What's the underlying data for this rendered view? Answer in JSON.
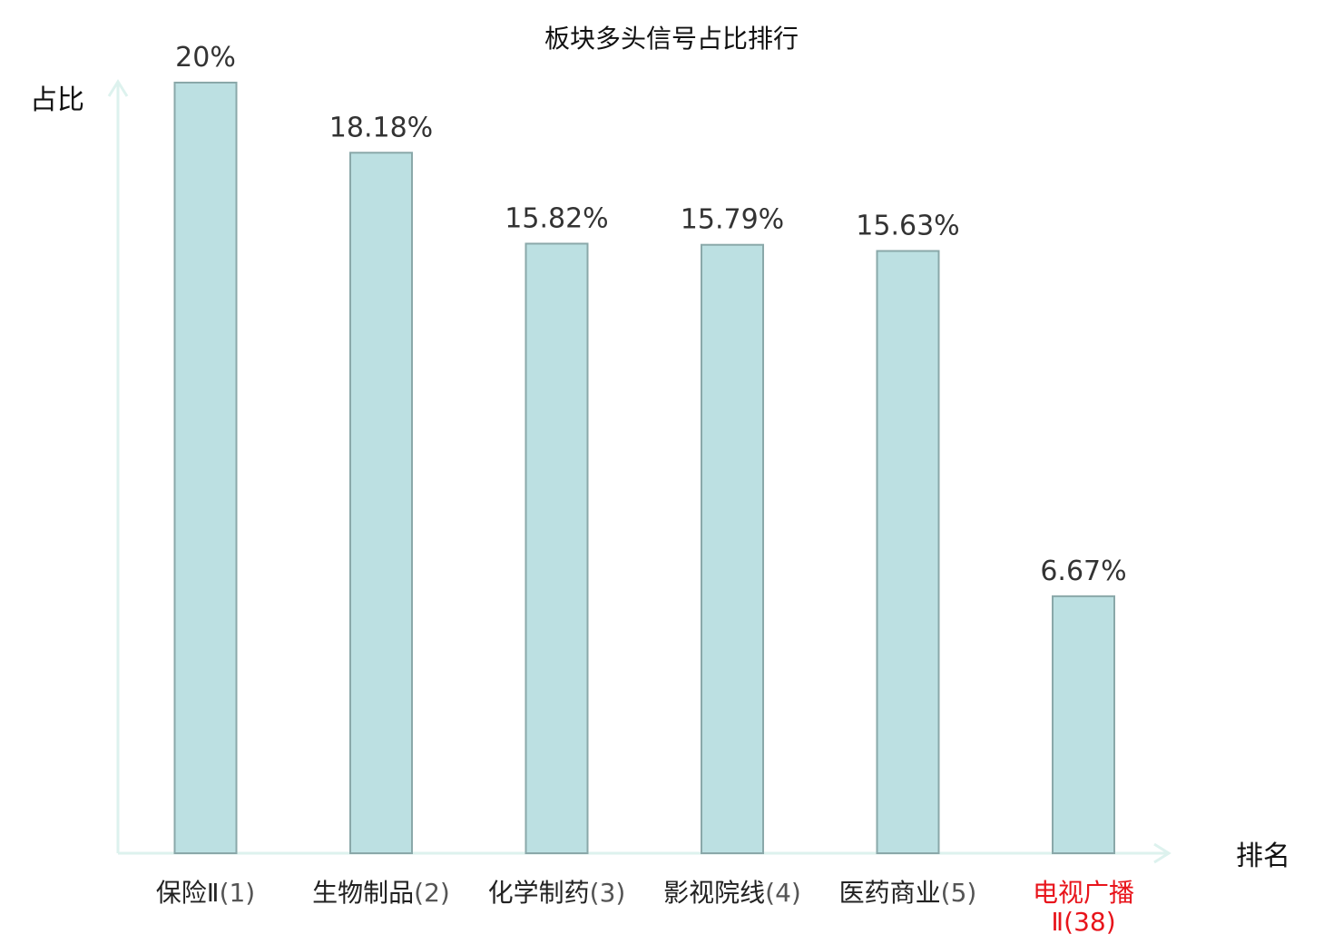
{
  "chart_data": {
    "type": "bar",
    "title": "板块多头信号占比排行",
    "xlabel": "排名",
    "ylabel": "占比",
    "ylim": [
      0,
      20
    ],
    "grid": false,
    "categories": [
      {
        "name": "保险Ⅱ",
        "rank": "(1)"
      },
      {
        "name": "生物制品",
        "rank": "(2)"
      },
      {
        "name": "化学制药",
        "rank": "(3)"
      },
      {
        "name": "影视院线",
        "rank": "(4)"
      },
      {
        "name": "医药商业",
        "rank": "(5)"
      },
      {
        "name": "电视广播",
        "rank": "Ⅱ(38)",
        "highlight": true
      }
    ],
    "values": [
      20,
      18.18,
      15.82,
      15.79,
      15.63,
      6.67
    ],
    "value_labels": [
      "20%",
      "18.18%",
      "15.82%",
      "15.79%",
      "15.63%",
      "6.67%"
    ]
  },
  "colors": {
    "bar_fill": "#bce0e2",
    "bar_stroke": "#8aa8a9",
    "axis": "#ddf2ee",
    "highlight": "#e8141b",
    "text": "#222222"
  }
}
